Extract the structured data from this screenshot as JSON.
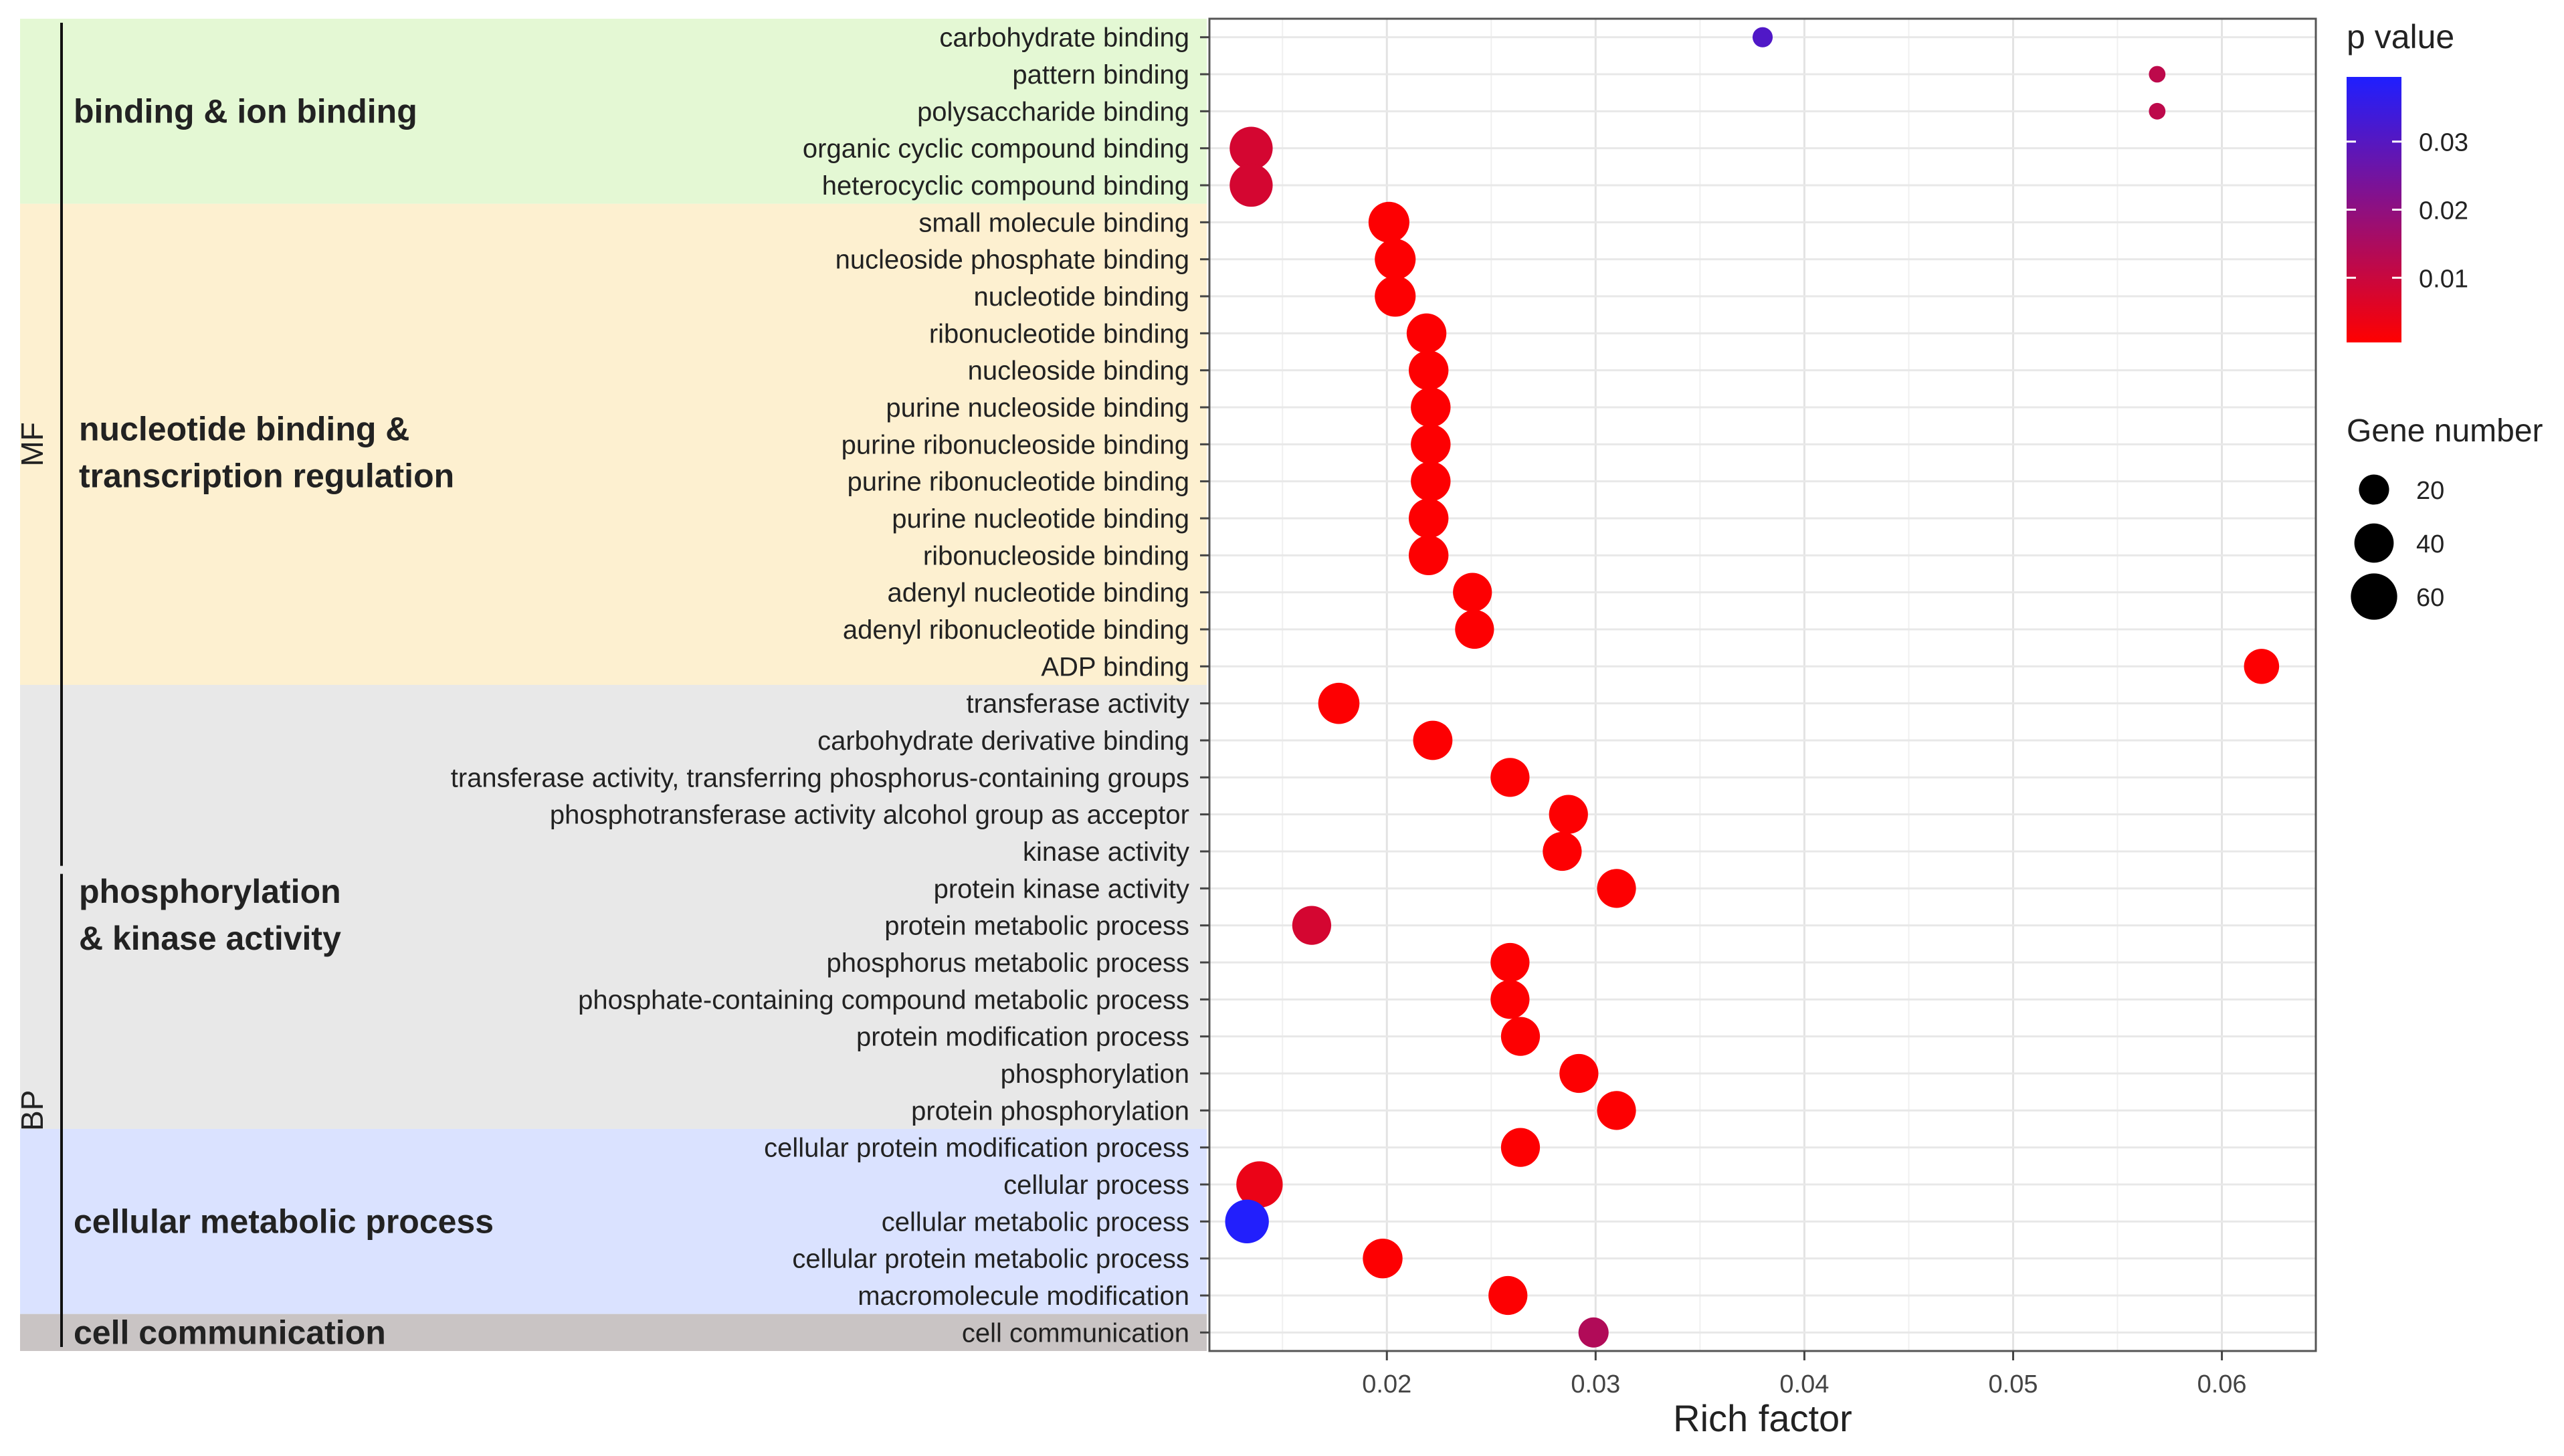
{
  "chart_data": {
    "type": "scatter",
    "xlabel": "Rich factor",
    "ylabel": "",
    "xlim": [
      0.0115,
      0.0645
    ],
    "xticks": [
      0.02,
      0.03,
      0.04,
      0.05,
      0.06
    ],
    "xtick_labels": [
      "0.02",
      "0.03",
      "0.04",
      "0.05",
      "0.06"
    ],
    "grid": true,
    "categories": [
      "carbohydrate binding",
      "pattern binding",
      "polysaccharide binding",
      "organic cyclic compound binding",
      "heterocyclic compound binding",
      "small molecule binding",
      "nucleoside phosphate binding",
      "nucleotide binding",
      "ribonucleotide binding",
      "nucleoside binding",
      "purine nucleoside binding",
      "purine ribonucleoside binding",
      "purine ribonucleotide binding",
      "purine nucleotide binding",
      "ribonucleoside binding",
      "adenyl nucleotide binding",
      "adenyl ribonucleotide binding",
      "ADP binding",
      "transferase activity",
      "carbohydrate derivative binding",
      "transferase activity, transferring phosphorus-containing groups",
      "phosphotransferase activity alcohol group as acceptor",
      "kinase activity",
      "protein kinase activity",
      "protein metabolic process",
      "phosphorus metabolic process",
      "phosphate-containing compound metabolic process",
      "protein modification process",
      "phosphorylation",
      "protein phosphorylation",
      "cellular protein modification process",
      "cellular process",
      "cellular metabolic process",
      "cellular protein metabolic process",
      "macromolecule modification",
      "cell communication"
    ],
    "rich_factor": [
      0.038,
      0.0569,
      0.0569,
      0.0135,
      0.0135,
      0.0201,
      0.0204,
      0.0204,
      0.0219,
      0.022,
      0.0221,
      0.0221,
      0.0221,
      0.022,
      0.022,
      0.0241,
      0.0242,
      0.0619,
      0.0177,
      0.0222,
      0.0259,
      0.0287,
      0.0284,
      0.031,
      0.0164,
      0.0259,
      0.0259,
      0.0264,
      0.0292,
      0.031,
      0.0264,
      0.0139,
      0.0133,
      0.0198,
      0.0258,
      0.0299
    ],
    "gene_number": [
      6,
      3,
      3,
      50,
      50,
      44,
      44,
      44,
      41,
      41,
      41,
      41,
      41,
      41,
      41,
      39,
      39,
      30,
      45,
      40,
      39,
      39,
      39,
      39,
      39,
      39,
      39,
      39,
      39,
      39,
      39,
      60,
      52,
      41,
      39,
      20
    ],
    "p_value": [
      0.031,
      0.012,
      0.012,
      0.008,
      0.008,
      0.0008,
      0.0008,
      0.0008,
      0.0008,
      0.0008,
      0.0008,
      0.0008,
      0.0008,
      0.0008,
      0.0008,
      0.0008,
      0.0008,
      0.0008,
      0.0008,
      0.0008,
      0.0008,
      0.0008,
      0.0008,
      0.0008,
      0.008,
      0.0008,
      0.0008,
      0.0008,
      0.0008,
      0.0008,
      0.0008,
      0.004,
      0.039,
      0.0008,
      0.0008,
      0.014
    ],
    "groups": [
      {
        "label": "binding & ion binding",
        "label2": "",
        "from": 0,
        "to": 4,
        "color": "#e4f8d4"
      },
      {
        "label": "nucleotide binding &",
        "label2": "transcription regulation",
        "from": 5,
        "to": 17,
        "color": "#fdf0d0"
      },
      {
        "label": "phosphorylation",
        "label2": "& kinase activity",
        "from": 18,
        "to": 29,
        "color": "#e8e8e8"
      },
      {
        "label": "cellular metabolic process",
        "label2": "",
        "from": 30,
        "to": 34,
        "color": "#dae2ff"
      },
      {
        "label": "cell communication",
        "label2": "",
        "from": 35,
        "to": 35,
        "color": "#c9c4c4"
      }
    ],
    "ontology": [
      {
        "label": "MF",
        "from": 0,
        "to": 22
      },
      {
        "label": "BP",
        "from": 23,
        "to": 35
      }
    ],
    "legend_color": {
      "title": "p value",
      "ticks": [
        0.01,
        0.02,
        0.03
      ],
      "tick_labels": [
        "0.01",
        "0.02",
        "0.03"
      ],
      "min": 0.0005,
      "max": 0.0395,
      "low_color": "#ff0000",
      "high_color": "#1f1fff"
    },
    "legend_size": {
      "title": "Gene number",
      "values": [
        20,
        40,
        60
      ],
      "labels": [
        "20",
        "40",
        "60"
      ]
    },
    "legend_position": "right"
  }
}
